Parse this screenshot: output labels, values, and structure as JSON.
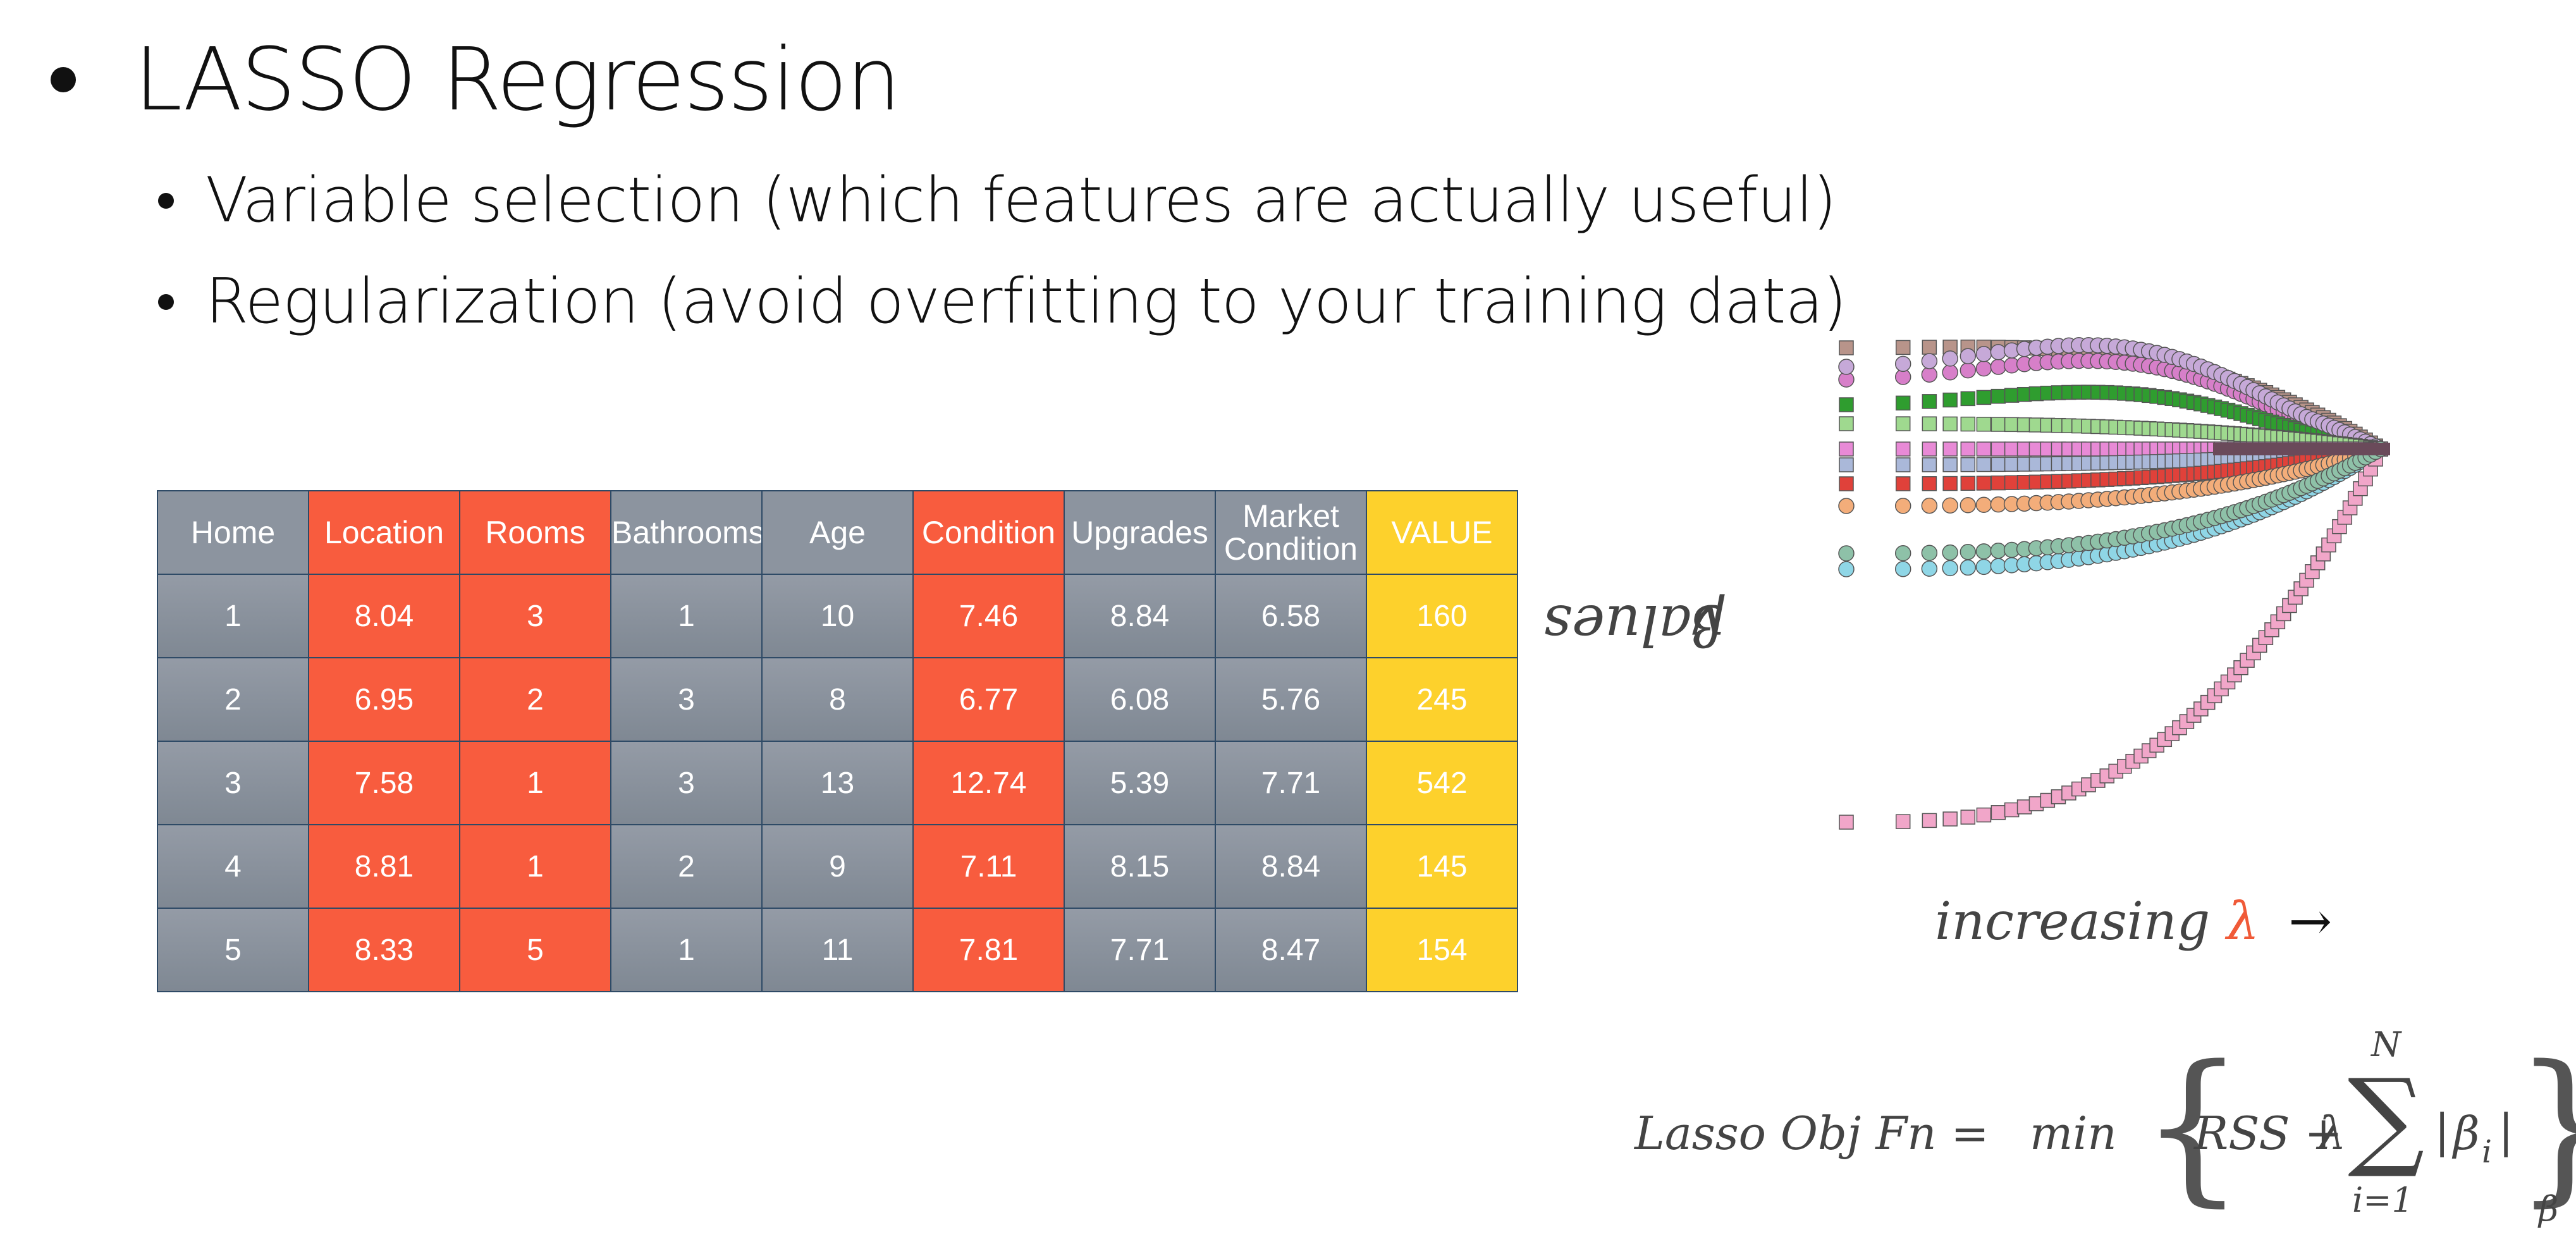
{
  "slide": {
    "title": "LASSO Regression",
    "bullets": [
      "Variable selection (which features are actually useful)",
      "Regularization (avoid overfitting to your training data)"
    ]
  },
  "table": {
    "headers": [
      "Home",
      "Location",
      "Rooms",
      "Bathrooms",
      "Age",
      "Condition",
      "Upgrades",
      "Market Condition",
      "VALUE"
    ],
    "header_colors": [
      "grey",
      "red",
      "red",
      "grey",
      "grey",
      "red",
      "grey",
      "grey",
      "yellow"
    ],
    "rows": [
      [
        "1",
        "8.04",
        "3",
        "1",
        "10",
        "7.46",
        "8.84",
        "6.58",
        "160"
      ],
      [
        "2",
        "6.95",
        "2",
        "3",
        "8",
        "6.77",
        "6.08",
        "5.76",
        "245"
      ],
      [
        "3",
        "7.58",
        "1",
        "3",
        "13",
        "12.74",
        "5.39",
        "7.71",
        "542"
      ],
      [
        "4",
        "8.81",
        "1",
        "2",
        "9",
        "7.11",
        "8.15",
        "8.84",
        "145"
      ],
      [
        "5",
        "8.33",
        "5",
        "1",
        "11",
        "7.81",
        "7.71",
        "8.47",
        "154"
      ]
    ],
    "colors": {
      "grey": "#8c949f",
      "red": "#f85c3e",
      "yellow": "#fdd12c",
      "border": "#2e4a66"
    }
  },
  "chart": {
    "y_label_symbol": "β",
    "y_label_text": "values",
    "x_label_text": "increasing",
    "x_label_symbol": "λ",
    "x_label_arrow": "→"
  },
  "formula": {
    "lhs": "Lasso Obj Fn =",
    "min": "min",
    "rss": "RSS +",
    "lambda": "λ",
    "sum_upper": "N",
    "sum_lower": "i=1",
    "beta_i": "β",
    "beta_sub": "i",
    "min_sub": "β"
  },
  "accent_color": "#f05a38"
}
